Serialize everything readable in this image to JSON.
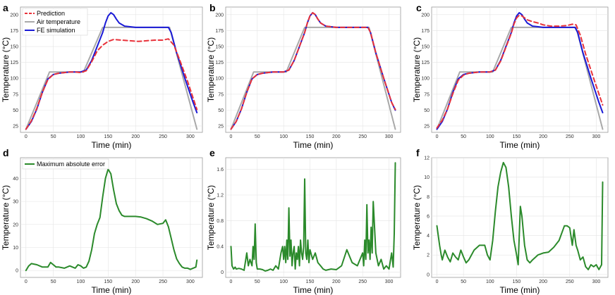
{
  "chart_data": [
    {
      "letter": "a",
      "type": "line",
      "xlabel": "Time (min)",
      "ylabel": "Temperature (°C)",
      "xlim": [
        -10,
        322
      ],
      "ylim": [
        15,
        212
      ],
      "xticks": [
        0,
        50,
        100,
        150,
        200,
        250,
        300
      ],
      "yticks": [
        25,
        50,
        75,
        100,
        125,
        150,
        175,
        200
      ],
      "legend": "top-left",
      "series": [
        {
          "name": "Air temperature",
          "color": "#a9a9a9",
          "dash": "",
          "x": [
            0,
            43,
            105,
            140,
            262,
            312
          ],
          "y": [
            20,
            110,
            110,
            180,
            180,
            20
          ]
        },
        {
          "name": "FE simulation",
          "color": "#1a1ad6",
          "dash": "",
          "x": [
            0,
            10,
            20,
            30,
            40,
            50,
            60,
            70,
            80,
            90,
            100,
            110,
            120,
            130,
            140,
            145,
            150,
            155,
            160,
            165,
            170,
            180,
            200,
            230,
            260,
            265,
            275,
            290,
            305,
            312
          ],
          "y": [
            20,
            32,
            52,
            78,
            99,
            106,
            108,
            109,
            110,
            110,
            110,
            113,
            128,
            150,
            172,
            187,
            198,
            203,
            200,
            193,
            187,
            182,
            180,
            180,
            180,
            172,
            140,
            100,
            62,
            46
          ]
        },
        {
          "name": "Prediction",
          "color": "#e8323a",
          "dash": "6,4",
          "x": [
            0,
            10,
            20,
            30,
            40,
            50,
            60,
            70,
            80,
            90,
            100,
            110,
            120,
            130,
            140,
            145,
            150,
            160,
            175,
            190,
            205,
            220,
            235,
            250,
            260,
            270,
            280,
            295,
            312
          ],
          "y": [
            20,
            33,
            53,
            78,
            98,
            106,
            108,
            109,
            110,
            110,
            109,
            112,
            126,
            143,
            152,
            155,
            158,
            161,
            160,
            159,
            158,
            159,
            160,
            160,
            162,
            152,
            130,
            95,
            51
          ]
        }
      ]
    },
    {
      "letter": "b",
      "type": "line",
      "xlabel": "Time (min)",
      "ylabel": "Temperature (°C)",
      "xlim": [
        -10,
        322
      ],
      "ylim": [
        15,
        212
      ],
      "xticks": [
        0,
        50,
        100,
        150,
        200,
        250,
        300
      ],
      "yticks": [
        25,
        50,
        75,
        100,
        125,
        150,
        175,
        200
      ],
      "series": [
        {
          "name": "Air temperature",
          "color": "#a9a9a9",
          "dash": "",
          "x": [
            0,
            43,
            105,
            140,
            262,
            312
          ],
          "y": [
            20,
            110,
            110,
            180,
            180,
            20
          ]
        },
        {
          "name": "FE simulation",
          "color": "#1a1ad6",
          "dash": "",
          "x": [
            0,
            10,
            20,
            30,
            40,
            50,
            60,
            70,
            80,
            90,
            100,
            110,
            120,
            130,
            140,
            145,
            150,
            155,
            160,
            165,
            170,
            180,
            200,
            230,
            260,
            265,
            275,
            290,
            305,
            312
          ],
          "y": [
            20,
            32,
            52,
            78,
            99,
            106,
            108,
            109,
            110,
            110,
            110,
            113,
            128,
            150,
            172,
            187,
            198,
            203,
            200,
            193,
            187,
            182,
            180,
            180,
            180,
            172,
            140,
            100,
            62,
            50
          ]
        },
        {
          "name": "Prediction",
          "color": "#e8323a",
          "dash": "6,4",
          "x": [
            0,
            10,
            20,
            30,
            40,
            50,
            60,
            70,
            80,
            90,
            100,
            110,
            120,
            130,
            140,
            145,
            150,
            155,
            160,
            165,
            170,
            180,
            200,
            230,
            260,
            265,
            275,
            290,
            305,
            312
          ],
          "y": [
            20,
            32,
            52,
            78,
            99,
            106,
            108,
            109,
            110,
            110,
            110,
            113,
            128,
            150,
            172,
            187,
            198,
            203,
            200,
            193,
            187,
            182,
            180,
            180,
            180,
            172,
            140,
            100,
            62,
            51
          ]
        }
      ]
    },
    {
      "letter": "c",
      "type": "line",
      "xlabel": "Time (min)",
      "ylabel": "Temperature (°C)",
      "xlim": [
        -10,
        322
      ],
      "ylim": [
        15,
        212
      ],
      "xticks": [
        0,
        50,
        100,
        150,
        200,
        250,
        300
      ],
      "yticks": [
        25,
        50,
        75,
        100,
        125,
        150,
        175,
        200
      ],
      "series": [
        {
          "name": "Air temperature",
          "color": "#a9a9a9",
          "dash": "",
          "x": [
            0,
            43,
            105,
            140,
            262,
            312
          ],
          "y": [
            20,
            110,
            110,
            180,
            180,
            20
          ]
        },
        {
          "name": "FE simulation",
          "color": "#1a1ad6",
          "dash": "",
          "x": [
            0,
            10,
            20,
            30,
            40,
            50,
            60,
            70,
            80,
            90,
            100,
            110,
            120,
            130,
            140,
            145,
            150,
            155,
            160,
            165,
            170,
            180,
            200,
            230,
            260,
            265,
            275,
            290,
            305,
            312
          ],
          "y": [
            20,
            32,
            52,
            78,
            99,
            106,
            108,
            109,
            110,
            110,
            110,
            113,
            128,
            150,
            172,
            187,
            198,
            203,
            200,
            193,
            187,
            182,
            180,
            180,
            180,
            172,
            140,
            100,
            62,
            46
          ]
        },
        {
          "name": "Prediction",
          "color": "#e8323a",
          "dash": "6,4",
          "x": [
            0,
            10,
            20,
            30,
            40,
            50,
            60,
            70,
            80,
            90,
            100,
            110,
            120,
            130,
            140,
            145,
            150,
            155,
            160,
            170,
            180,
            190,
            200,
            215,
            230,
            245,
            255,
            262,
            270,
            280,
            295,
            312
          ],
          "y": [
            22,
            34,
            52,
            76,
            97,
            105,
            108,
            109,
            110,
            110,
            110,
            113,
            127,
            149,
            171,
            185,
            195,
            199,
            198,
            192,
            189,
            187,
            184,
            182,
            182,
            183,
            185,
            184,
            168,
            138,
            100,
            58
          ]
        }
      ]
    },
    {
      "letter": "d",
      "type": "line",
      "xlabel": "Time (min)",
      "ylabel": "Temperature (°C)",
      "xlim": [
        -10,
        322
      ],
      "ylim": [
        -3,
        49
      ],
      "xticks": [
        0,
        50,
        100,
        150,
        200,
        250,
        300
      ],
      "yticks": [
        0,
        10,
        20,
        30,
        40
      ],
      "legend": "top-left",
      "series": [
        {
          "name": "Maximum absolute error",
          "color": "#2b8a2b",
          "dash": "",
          "x": [
            0,
            5,
            10,
            20,
            30,
            40,
            45,
            50,
            55,
            60,
            70,
            80,
            90,
            95,
            100,
            105,
            110,
            115,
            120,
            125,
            130,
            135,
            140,
            145,
            150,
            155,
            160,
            165,
            170,
            175,
            180,
            190,
            200,
            210,
            220,
            230,
            240,
            250,
            255,
            260,
            265,
            270,
            275,
            280,
            285,
            290,
            295,
            300,
            305,
            310,
            312
          ],
          "y": [
            0,
            2,
            3,
            2.5,
            1.5,
            1.5,
            3.5,
            2.5,
            1.5,
            1.5,
            1,
            2,
            1,
            2.5,
            2,
            1,
            1.5,
            4,
            9,
            16,
            20,
            23,
            32,
            40,
            44,
            42,
            35,
            29,
            26,
            24,
            23.5,
            23.5,
            23.5,
            23.2,
            22.5,
            21.5,
            20,
            20.5,
            22,
            19,
            14,
            9,
            5,
            3,
            1.5,
            1,
            1,
            0.5,
            1,
            1.5,
            4.5
          ]
        }
      ]
    },
    {
      "letter": "e",
      "type": "line",
      "xlabel": "Time (min)",
      "ylabel": "Temperature (°C)",
      "xlim": [
        -10,
        322
      ],
      "ylim": [
        -0.08,
        1.78
      ],
      "xticks": [
        0,
        50,
        100,
        150,
        200,
        250,
        300
      ],
      "yticks": [
        0,
        0.4,
        0.8,
        1.2,
        1.6
      ],
      "series": [
        {
          "name": "",
          "color": "#2b8a2b",
          "dash": "",
          "x": [
            0,
            2,
            5,
            8,
            10,
            15,
            20,
            25,
            30,
            33,
            36,
            40,
            42,
            44,
            46,
            48,
            50,
            55,
            60,
            65,
            70,
            75,
            80,
            85,
            90,
            95,
            98,
            100,
            102,
            104,
            106,
            108,
            110,
            112,
            114,
            116,
            118,
            120,
            122,
            124,
            126,
            128,
            130,
            132,
            134,
            136,
            138,
            140,
            142,
            144,
            146,
            148,
            150,
            155,
            160,
            165,
            170,
            175,
            180,
            190,
            200,
            210,
            220,
            230,
            240,
            245,
            250,
            252,
            254,
            256,
            258,
            260,
            262,
            264,
            266,
            268,
            270,
            275,
            280,
            285,
            290,
            295,
            300,
            305,
            308,
            310,
            312
          ],
          "y": [
            0.4,
            0.1,
            0.05,
            0.08,
            0.05,
            0.06,
            0.05,
            0.03,
            0.3,
            0.1,
            0.2,
            0.1,
            0.4,
            0.2,
            0.75,
            0.15,
            0.05,
            0.05,
            0.04,
            0.02,
            0.03,
            0.05,
            0.03,
            0.1,
            0.05,
            0.3,
            0.4,
            0.2,
            0.4,
            0.15,
            0.5,
            0.2,
            1.0,
            0.25,
            0.5,
            0.1,
            0.3,
            0.4,
            0.05,
            0.3,
            0.2,
            0.4,
            0.1,
            0.5,
            0.3,
            0.2,
            0.4,
            1.45,
            0.3,
            0.2,
            0.5,
            0.15,
            0.35,
            0.2,
            0.3,
            0.15,
            0.1,
            0.05,
            0.03,
            0.05,
            0.04,
            0.1,
            0.35,
            0.15,
            0.1,
            0.2,
            0.3,
            0.1,
            0.5,
            0.2,
            1.05,
            0.3,
            0.5,
            0.2,
            0.7,
            0.3,
            1.1,
            0.3,
            0.1,
            0.2,
            0.05,
            0.1,
            0.05,
            0.3,
            0.08,
            0.6,
            1.7
          ]
        }
      ]
    },
    {
      "letter": "f",
      "type": "line",
      "xlabel": "Time (min)",
      "ylabel": "Temperature (°C)",
      "xlim": [
        -10,
        322
      ],
      "ylim": [
        -0.3,
        12
      ],
      "xticks": [
        0,
        50,
        100,
        150,
        200,
        250,
        300
      ],
      "yticks": [
        0,
        2,
        4,
        6,
        8,
        10,
        12
      ],
      "series": [
        {
          "name": "",
          "color": "#2b8a2b",
          "dash": "",
          "x": [
            0,
            5,
            8,
            10,
            15,
            20,
            25,
            30,
            35,
            40,
            45,
            50,
            55,
            60,
            70,
            80,
            90,
            95,
            100,
            105,
            110,
            115,
            120,
            125,
            130,
            135,
            140,
            145,
            150,
            153,
            157,
            160,
            165,
            170,
            175,
            180,
            190,
            200,
            210,
            220,
            230,
            240,
            245,
            250,
            255,
            258,
            262,
            265,
            270,
            275,
            280,
            285,
            290,
            295,
            300,
            305,
            310,
            312
          ],
          "y": [
            5,
            3,
            2,
            1.5,
            2.5,
            1.8,
            1.3,
            2.2,
            1.8,
            1.5,
            2.5,
            1.8,
            1.2,
            1.5,
            2.5,
            3,
            3,
            2,
            1.5,
            3.5,
            6.5,
            9,
            10.5,
            11.5,
            11,
            9,
            6,
            3.5,
            2,
            1,
            7,
            6,
            3,
            1.5,
            1.2,
            1.5,
            2,
            2.2,
            2.3,
            2.8,
            3.5,
            5,
            5,
            4.8,
            3,
            4.6,
            3,
            2.5,
            1.5,
            1.8,
            0.8,
            0.5,
            1,
            0.8,
            1,
            0.5,
            1,
            9.5
          ]
        }
      ]
    }
  ]
}
